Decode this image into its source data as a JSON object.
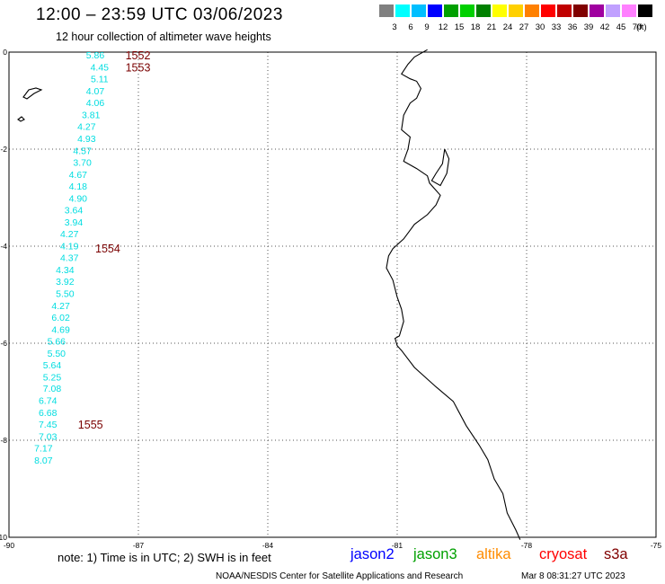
{
  "header": {
    "title": "12:00 – 23:59 UTC 03/06/2023",
    "subtitle": "12 hour collection of altimeter wave heights"
  },
  "legend": {
    "colors": [
      "#808080",
      "#00ffff",
      "#00bfff",
      "#0000ff",
      "#00a000",
      "#00d000",
      "#008000",
      "#ffff00",
      "#ffd000",
      "#ff8000",
      "#ff0000",
      "#c00000",
      "#800000",
      "#a000a0",
      "#c0a0ff",
      "#ff80ff",
      "#000000"
    ],
    "levels": [
      "3",
      "6",
      "9",
      "12",
      "15",
      "18",
      "21",
      "24",
      "27",
      "30",
      "33",
      "36",
      "39",
      "42",
      "45",
      "70"
    ],
    "unit": "(ft)"
  },
  "axes": {
    "x_ticks": [
      "-90",
      "-87",
      "-84",
      "-81",
      "-78",
      "-75"
    ],
    "y_ticks": [
      "0",
      "-2",
      "-4",
      "-6",
      "-8",
      "-10"
    ],
    "lon_range": [
      -90,
      -75
    ],
    "lat_range": [
      -10,
      0
    ]
  },
  "wave_heights": [
    {
      "lat": -0.06,
      "lon": -88.0,
      "value": "5.86"
    },
    {
      "lat": -0.31,
      "lon": -87.9,
      "value": "4.45"
    },
    {
      "lat": -0.55,
      "lon": -87.9,
      "value": "5.11"
    },
    {
      "lat": -0.8,
      "lon": -88.0,
      "value": "4.07"
    },
    {
      "lat": -1.04,
      "lon": -88.0,
      "value": "4.06"
    },
    {
      "lat": -1.29,
      "lon": -88.1,
      "value": "3.81"
    },
    {
      "lat": -1.53,
      "lon": -88.2,
      "value": "4.27"
    },
    {
      "lat": -1.78,
      "lon": -88.2,
      "value": "4.93"
    },
    {
      "lat": -2.03,
      "lon": -88.3,
      "value": "4.57"
    },
    {
      "lat": -2.27,
      "lon": -88.3,
      "value": "3.70"
    },
    {
      "lat": -2.52,
      "lon": -88.4,
      "value": "4.67"
    },
    {
      "lat": -2.76,
      "lon": -88.4,
      "value": "4.18"
    },
    {
      "lat": -3.01,
      "lon": -88.4,
      "value": "4.90"
    },
    {
      "lat": -3.25,
      "lon": -88.5,
      "value": "3.64"
    },
    {
      "lat": -3.5,
      "lon": -88.5,
      "value": "3.94"
    },
    {
      "lat": -3.74,
      "lon": -88.6,
      "value": "4.27"
    },
    {
      "lat": -3.99,
      "lon": -88.6,
      "value": "4.19"
    },
    {
      "lat": -4.23,
      "lon": -88.6,
      "value": "4.37"
    },
    {
      "lat": -4.48,
      "lon": -88.7,
      "value": "4.34"
    },
    {
      "lat": -4.72,
      "lon": -88.7,
      "value": "3.92"
    },
    {
      "lat": -4.97,
      "lon": -88.7,
      "value": "5.50"
    },
    {
      "lat": -5.22,
      "lon": -88.8,
      "value": "4.27"
    },
    {
      "lat": -5.46,
      "lon": -88.8,
      "value": "6.02"
    },
    {
      "lat": -5.71,
      "lon": -88.8,
      "value": "4.69"
    },
    {
      "lat": -5.95,
      "lon": -88.9,
      "value": "5.66"
    },
    {
      "lat": -6.2,
      "lon": -88.9,
      "value": "5.50"
    },
    {
      "lat": -6.44,
      "lon": -89.0,
      "value": "5.64"
    },
    {
      "lat": -6.69,
      "lon": -89.0,
      "value": "5.25"
    },
    {
      "lat": -6.93,
      "lon": -89.0,
      "value": "7.08"
    },
    {
      "lat": -7.18,
      "lon": -89.1,
      "value": "6.74"
    },
    {
      "lat": -7.43,
      "lon": -89.1,
      "value": "6.68"
    },
    {
      "lat": -7.67,
      "lon": -89.1,
      "value": "7.45"
    },
    {
      "lat": -7.92,
      "lon": -89.1,
      "value": "7.03"
    },
    {
      "lat": -8.16,
      "lon": -89.2,
      "value": "7.17"
    },
    {
      "lat": -8.41,
      "lon": -89.2,
      "value": "8.07"
    }
  ],
  "pass_times": [
    {
      "lat": -0.06,
      "lon": -87.3,
      "value": "1552"
    },
    {
      "lat": -0.31,
      "lon": -87.3,
      "value": "1553"
    },
    {
      "lat": -4.04,
      "lon": -88.0,
      "value": "1554"
    },
    {
      "lat": -7.67,
      "lon": -88.4,
      "value": "1555"
    }
  ],
  "footer": {
    "note": "note:  1) Time is in UTC;  2) SWH is in feet",
    "satellites": [
      {
        "name": "jason2",
        "color": "#0000ff"
      },
      {
        "name": "jason3",
        "color": "#00a000"
      },
      {
        "name": "altika",
        "color": "#ff8c00"
      },
      {
        "name": "cryosat",
        "color": "#ff0000"
      },
      {
        "name": "s3a",
        "color": "#800000"
      }
    ],
    "credit": "NOAA/NESDIS Center for Satellite Applications and Research",
    "date": "Mar  8 08:31:27 UTC 2023"
  }
}
